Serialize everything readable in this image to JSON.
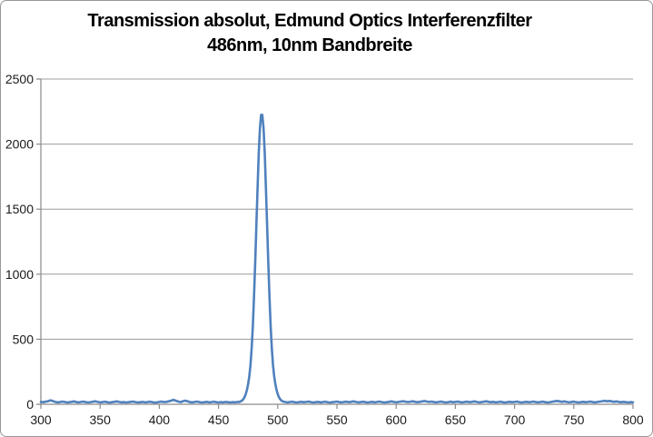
{
  "title": {
    "line1": "Transmission absolut, Edmund Optics Interferenzfilter",
    "line2": "486nm, 10nm Bandbreite"
  },
  "colors": {
    "background": "#FFFFFF",
    "line": "#4F81BD",
    "grid": "#9C9C9C",
    "axis": "#8A8A8A",
    "border": "#979797",
    "title_text": "#000000",
    "tick_text": "#1A1A1A"
  },
  "chart_data": {
    "type": "line",
    "title": "Transmission absolut, Edmund Optics Interferenzfilter 486nm, 10nm Bandbreite",
    "xlabel": "",
    "ylabel": "",
    "xlim": [
      300,
      800
    ],
    "ylim": [
      0,
      2500
    ],
    "x_ticks": [
      300,
      350,
      400,
      450,
      500,
      550,
      600,
      650,
      700,
      750,
      800
    ],
    "y_ticks": [
      0,
      500,
      1000,
      1500,
      2000,
      2500
    ],
    "grid": "horizontal-only",
    "legend_position": "none",
    "series": [
      {
        "name": "transmission",
        "color": "#4F81BD",
        "x": [
          300,
          302,
          304,
          306,
          308,
          310,
          312,
          314,
          316,
          318,
          320,
          322,
          324,
          326,
          328,
          330,
          332,
          334,
          336,
          338,
          340,
          342,
          344,
          346,
          348,
          350,
          352,
          354,
          356,
          358,
          360,
          362,
          364,
          366,
          368,
          370,
          372,
          374,
          376,
          378,
          380,
          382,
          384,
          386,
          388,
          390,
          392,
          394,
          396,
          398,
          400,
          402,
          404,
          406,
          408,
          410,
          412,
          414,
          416,
          418,
          420,
          422,
          424,
          426,
          428,
          430,
          432,
          434,
          436,
          438,
          440,
          442,
          444,
          446,
          448,
          450,
          452,
          454,
          456,
          458,
          460,
          462,
          464,
          466,
          467,
          468,
          469,
          470,
          471,
          472,
          473,
          474,
          475,
          476,
          477,
          478,
          479,
          480,
          481,
          482,
          483,
          484,
          485,
          486,
          487,
          488,
          489,
          490,
          491,
          492,
          493,
          494,
          495,
          496,
          497,
          498,
          499,
          500,
          501,
          502,
          503,
          504,
          505,
          506,
          508,
          510,
          512,
          514,
          516,
          518,
          520,
          522,
          524,
          526,
          528,
          530,
          532,
          534,
          536,
          538,
          540,
          542,
          544,
          546,
          548,
          550,
          552,
          554,
          556,
          558,
          560,
          562,
          564,
          566,
          568,
          570,
          572,
          574,
          576,
          578,
          580,
          582,
          584,
          586,
          588,
          590,
          592,
          594,
          596,
          598,
          600,
          602,
          604,
          606,
          608,
          610,
          612,
          614,
          616,
          618,
          620,
          622,
          624,
          626,
          628,
          630,
          632,
          634,
          636,
          638,
          640,
          642,
          644,
          646,
          648,
          650,
          652,
          654,
          656,
          658,
          660,
          662,
          664,
          666,
          668,
          670,
          672,
          674,
          676,
          678,
          680,
          682,
          684,
          686,
          688,
          690,
          692,
          694,
          696,
          698,
          700,
          702,
          704,
          706,
          708,
          710,
          712,
          714,
          716,
          718,
          720,
          722,
          724,
          726,
          728,
          730,
          732,
          734,
          736,
          738,
          740,
          742,
          744,
          746,
          748,
          750,
          752,
          754,
          756,
          758,
          760,
          762,
          764,
          766,
          768,
          770,
          772,
          774,
          776,
          778,
          780,
          782,
          784,
          786,
          788,
          790,
          792,
          794,
          796,
          798,
          800
        ],
        "y": [
          18,
          16,
          20,
          24,
          30,
          26,
          19,
          15,
          17,
          21,
          18,
          14,
          16,
          19,
          22,
          17,
          15,
          18,
          21,
          16,
          14,
          17,
          20,
          23,
          18,
          15,
          17,
          20,
          16,
          13,
          16,
          19,
          22,
          18,
          15,
          17,
          14,
          16,
          19,
          21,
          17,
          14,
          16,
          18,
          15,
          17,
          20,
          16,
          13,
          15,
          18,
          21,
          17,
          19,
          23,
          28,
          34,
          27,
          21,
          17,
          24,
          28,
          22,
          17,
          15,
          18,
          21,
          17,
          14,
          16,
          19,
          15,
          17,
          20,
          16,
          14,
          17,
          15,
          18,
          16,
          14,
          17,
          15,
          18,
          17,
          20,
          24,
          30,
          40,
          55,
          78,
          110,
          155,
          215,
          300,
          430,
          600,
          830,
          1090,
          1380,
          1660,
          1930,
          2120,
          2225,
          2225,
          2120,
          1930,
          1660,
          1380,
          1090,
          830,
          600,
          430,
          300,
          215,
          155,
          110,
          78,
          55,
          40,
          30,
          24,
          20,
          18,
          15,
          17,
          20,
          16,
          14,
          17,
          19,
          16,
          18,
          21,
          17,
          14,
          16,
          19,
          15,
          17,
          20,
          16,
          13,
          16,
          18,
          21,
          17,
          15,
          18,
          20,
          16,
          19,
          22,
          18,
          15,
          17,
          20,
          16,
          14,
          17,
          19,
          15,
          18,
          21,
          17,
          14,
          16,
          19,
          22,
          18,
          15,
          18,
          21,
          24,
          20,
          17,
          20,
          23,
          19,
          16,
          19,
          22,
          25,
          21,
          18,
          21,
          17,
          15,
          18,
          21,
          17,
          14,
          17,
          20,
          16,
          18,
          21,
          17,
          15,
          18,
          20,
          16,
          19,
          22,
          18,
          15,
          17,
          20,
          23,
          19,
          16,
          19,
          15,
          17,
          20,
          16,
          14,
          17,
          19,
          16,
          18,
          21,
          17,
          14,
          17,
          19,
          16,
          18,
          21,
          17,
          15,
          18,
          20,
          16,
          14,
          17,
          20,
          23,
          26,
          22,
          19,
          22,
          18,
          15,
          18,
          20,
          17,
          14,
          17,
          19,
          16,
          18,
          21,
          17,
          15,
          18,
          21,
          24,
          27,
          23,
          26,
          22,
          19,
          22,
          18,
          16,
          19,
          16,
          14,
          17,
          15
        ]
      }
    ]
  }
}
